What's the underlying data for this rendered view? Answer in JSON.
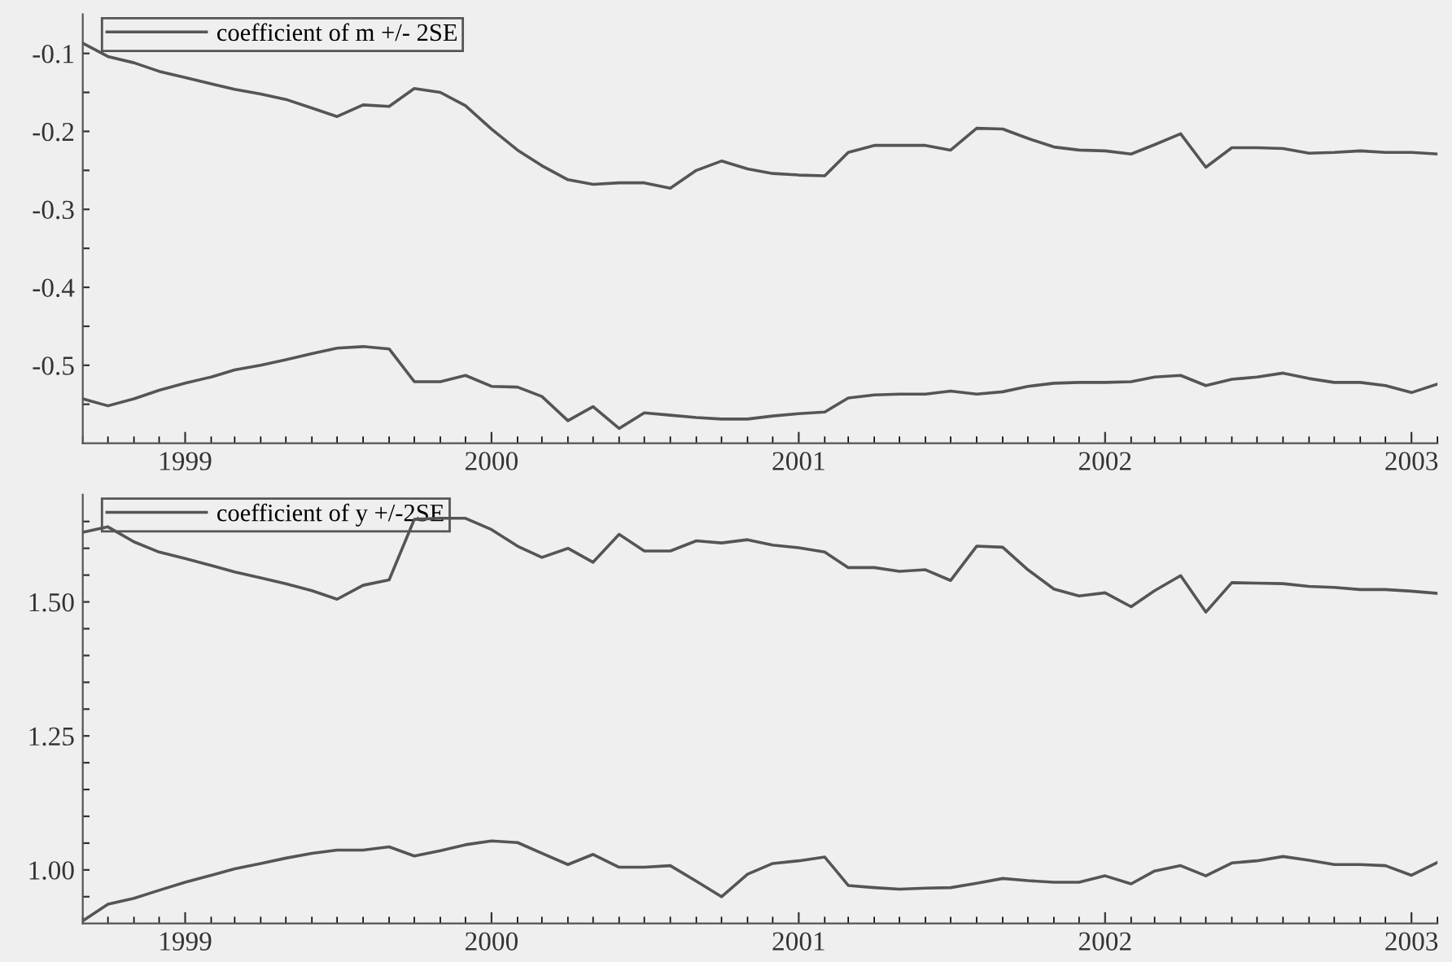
{
  "chart_data": [
    {
      "type": "line",
      "legend": "top left",
      "marker": "none",
      "line_style": "solid",
      "grid": false,
      "x": [
        "1998-09",
        "1998-10",
        "1998-11",
        "1998-12",
        "1999-01",
        "1999-02",
        "1999-03",
        "1999-04",
        "1999-05",
        "1999-06",
        "1999-07",
        "1999-08",
        "1999-09",
        "1999-10",
        "1999-11",
        "1999-12",
        "2000-01",
        "2000-02",
        "2000-03",
        "2000-04",
        "2000-05",
        "2000-06",
        "2000-07",
        "2000-08",
        "2000-09",
        "2000-10",
        "2000-11",
        "2000-12",
        "2001-01",
        "2001-02",
        "2001-03",
        "2001-04",
        "2001-05",
        "2001-06",
        "2001-07",
        "2001-08",
        "2001-09",
        "2001-10",
        "2001-11",
        "2001-12",
        "2002-01",
        "2002-02",
        "2002-03",
        "2002-04",
        "2002-05",
        "2002-06",
        "2002-07",
        "2002-08",
        "2002-09",
        "2002-10",
        "2002-11",
        "2002-12",
        "2003-01",
        "2003-02"
      ],
      "series": [
        {
          "name": "coefficient of m +/- 2SE",
          "color": "#555555",
          "values": [
            -0.087,
            -0.104,
            -0.112,
            -0.123,
            -0.131,
            -0.139,
            -0.146,
            -0.152,
            -0.159,
            -0.17,
            -0.181,
            -0.166,
            -0.168,
            -0.145,
            -0.15,
            -0.167,
            -0.197,
            -0.224,
            -0.244,
            -0.262,
            -0.268,
            -0.266,
            -0.266,
            -0.273,
            -0.25,
            -0.238,
            -0.248,
            -0.254,
            -0.256,
            -0.257,
            -0.227,
            -0.218,
            -0.218,
            -0.218,
            -0.224,
            -0.196,
            -0.197,
            -0.209,
            -0.22,
            -0.224,
            -0.225,
            -0.229,
            -0.217,
            -0.203,
            -0.246,
            -0.221,
            -0.221,
            -0.222,
            -0.228,
            -0.227,
            -0.225,
            -0.227,
            -0.227,
            -0.229
          ]
        },
        {
          "color": "#555555",
          "values": [
            -0.543,
            -0.552,
            -0.543,
            -0.532,
            -0.523,
            -0.515,
            -0.506,
            -0.5,
            -0.493,
            -0.485,
            -0.478,
            -0.476,
            -0.479,
            -0.521,
            -0.521,
            -0.513,
            -0.527,
            -0.528,
            -0.54,
            -0.571,
            -0.553,
            -0.581,
            -0.561,
            -0.564,
            -0.567,
            -0.569,
            -0.569,
            -0.565,
            -0.562,
            -0.56,
            -0.542,
            -0.538,
            -0.537,
            -0.537,
            -0.533,
            -0.537,
            -0.534,
            -0.527,
            -0.523,
            -0.522,
            -0.522,
            -0.521,
            -0.515,
            -0.513,
            -0.526,
            -0.518,
            -0.515,
            -0.51,
            -0.517,
            -0.522,
            -0.522,
            -0.526,
            -0.535,
            -0.524
          ]
        }
      ],
      "xlim": [
        "1998-09",
        "2003-02"
      ],
      "xticks": [
        {
          "value": "1999-01",
          "label": "1999"
        },
        {
          "value": "2000-01",
          "label": "2000"
        },
        {
          "value": "2001-01",
          "label": "2001"
        },
        {
          "value": "2002-01",
          "label": "2002"
        },
        {
          "value": "2003-01",
          "label": "2003"
        }
      ],
      "ylim": [
        -0.6,
        -0.05
      ],
      "yticks": [
        {
          "value": -0.55,
          "label": null
        },
        {
          "value": -0.5,
          "label": "-0.5"
        },
        {
          "value": -0.45,
          "label": null
        },
        {
          "value": -0.4,
          "label": "-0.4"
        },
        {
          "value": -0.35,
          "label": null
        },
        {
          "value": -0.3,
          "label": "-0.3"
        },
        {
          "value": -0.25,
          "label": null
        },
        {
          "value": -0.2,
          "label": "-0.2"
        },
        {
          "value": -0.15,
          "label": null
        },
        {
          "value": -0.1,
          "label": "-0.1"
        }
      ]
    },
    {
      "type": "line",
      "legend": "top left",
      "marker": "none",
      "line_style": "solid",
      "grid": false,
      "x": [
        "1998-09",
        "1998-10",
        "1998-11",
        "1998-12",
        "1999-01",
        "1999-02",
        "1999-03",
        "1999-04",
        "1999-05",
        "1999-06",
        "1999-07",
        "1999-08",
        "1999-09",
        "1999-10",
        "1999-11",
        "1999-12",
        "2000-01",
        "2000-02",
        "2000-03",
        "2000-04",
        "2000-05",
        "2000-06",
        "2000-07",
        "2000-08",
        "2000-09",
        "2000-10",
        "2000-11",
        "2000-12",
        "2001-01",
        "2001-02",
        "2001-03",
        "2001-04",
        "2001-05",
        "2001-06",
        "2001-07",
        "2001-08",
        "2001-09",
        "2001-10",
        "2001-11",
        "2001-12",
        "2002-01",
        "2002-02",
        "2002-03",
        "2002-04",
        "2002-05",
        "2002-06",
        "2002-07",
        "2002-08",
        "2002-09",
        "2002-10",
        "2002-11",
        "2002-12",
        "2003-01",
        "2003-02"
      ],
      "series": [
        {
          "name": "coefficient of y +/-2SE",
          "color": "#555555",
          "values": [
            1.63,
            1.64,
            1.612,
            1.593,
            1.581,
            1.568,
            1.556,
            1.545,
            1.534,
            1.521,
            1.505,
            1.531,
            1.541,
            1.654,
            1.656,
            1.656,
            1.635,
            1.604,
            1.583,
            1.6,
            1.574,
            1.626,
            1.595,
            1.595,
            1.614,
            1.61,
            1.616,
            1.606,
            1.601,
            1.593,
            1.564,
            1.564,
            1.557,
            1.56,
            1.54,
            1.604,
            1.602,
            1.56,
            1.524,
            1.511,
            1.517,
            1.491,
            1.521,
            1.549,
            1.481,
            1.536,
            1.535,
            1.534,
            1.529,
            1.527,
            1.523,
            1.523,
            1.52,
            1.516
          ]
        },
        {
          "color": "#555555",
          "values": [
            0.905,
            0.936,
            0.947,
            0.962,
            0.977,
            0.99,
            1.002,
            1.012,
            1.022,
            1.031,
            1.037,
            1.037,
            1.043,
            1.026,
            1.036,
            1.047,
            1.054,
            1.051,
            1.031,
            1.01,
            1.029,
            1.005,
            1.005,
            1.008,
            0.979,
            0.95,
            0.992,
            1.012,
            1.017,
            1.024,
            0.971,
            0.967,
            0.964,
            0.966,
            0.967,
            0.975,
            0.984,
            0.98,
            0.977,
            0.977,
            0.989,
            0.974,
            0.998,
            1.008,
            0.989,
            1.013,
            1.017,
            1.025,
            1.018,
            1.01,
            1.01,
            1.008,
            0.99,
            1.014
          ]
        }
      ],
      "xlim": [
        "1998-09",
        "2003-02"
      ],
      "xticks": [
        {
          "value": "1999-01",
          "label": "1999"
        },
        {
          "value": "2000-01",
          "label": "2000"
        },
        {
          "value": "2001-01",
          "label": "2001"
        },
        {
          "value": "2002-01",
          "label": "2002"
        },
        {
          "value": "2003-01",
          "label": "2003"
        }
      ],
      "ylim": [
        0.9,
        1.7
      ],
      "yticks": [
        {
          "value": 0.95,
          "label": null
        },
        {
          "value": 1.0,
          "label": "1.00"
        },
        {
          "value": 1.05,
          "label": null
        },
        {
          "value": 1.1,
          "label": null
        },
        {
          "value": 1.15,
          "label": null
        },
        {
          "value": 1.2,
          "label": null
        },
        {
          "value": 1.25,
          "label": "1.25"
        },
        {
          "value": 1.3,
          "label": null
        },
        {
          "value": 1.35,
          "label": null
        },
        {
          "value": 1.4,
          "label": null
        },
        {
          "value": 1.45,
          "label": null
        },
        {
          "value": 1.5,
          "label": "1.50"
        },
        {
          "value": 1.55,
          "label": null
        },
        {
          "value": 1.6,
          "label": null
        },
        {
          "value": 1.65,
          "label": null
        }
      ]
    }
  ]
}
